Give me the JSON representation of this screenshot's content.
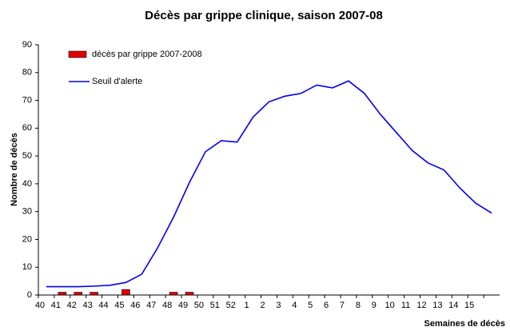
{
  "chart_data": {
    "type": "combo",
    "title": "Décès par grippe clinique, saison 2007-08",
    "x_label": "Semaines de décès",
    "y_label": "Nombre de décès",
    "categories": [
      "40",
      "41",
      "42",
      "43",
      "44",
      "45",
      "46",
      "47",
      "48",
      "49",
      "50",
      "51",
      "52",
      "1",
      "2",
      "3",
      "4",
      "5",
      "6",
      "7",
      "8",
      "9",
      "10",
      "11",
      "12",
      "13",
      "14",
      "15",
      null
    ],
    "series": [
      {
        "name": "décès par grippe 2007-2008",
        "type": "bar",
        "color": "#e00000",
        "values": [
          0,
          1,
          1,
          1,
          0,
          2,
          0,
          0,
          1,
          1,
          0,
          0,
          0,
          0,
          0,
          0,
          0,
          0,
          0,
          0,
          0,
          0,
          0,
          0,
          0,
          0,
          0,
          0,
          0
        ]
      },
      {
        "name": "Seuil d'alerte",
        "type": "line",
        "color": "#0000ee",
        "values": [
          3,
          3,
          3,
          3.2,
          3.5,
          4.5,
          7.5,
          17,
          28,
          40.5,
          51.5,
          55.5,
          55,
          64,
          69.5,
          71.5,
          72.5,
          75.5,
          74.5,
          77,
          72.5,
          65,
          58.5,
          52,
          47.5,
          45,
          38.5,
          33,
          29.5
        ]
      }
    ],
    "ylim": [
      0,
      90
    ],
    "yticks": [
      0,
      10,
      20,
      30,
      40,
      50,
      60,
      70,
      80,
      90
    ],
    "grid": false,
    "legend": "top-left"
  }
}
